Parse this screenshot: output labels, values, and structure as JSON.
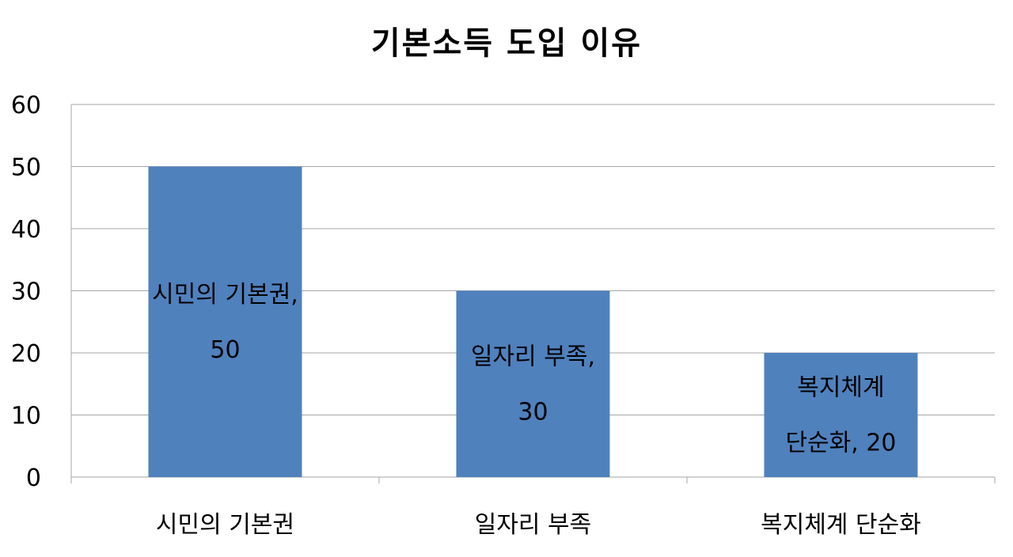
{
  "chart_data": {
    "type": "bar",
    "title": "기본소득 도입 이유",
    "xlabel": "",
    "ylabel": "",
    "categories": [
      "시민의 기본권",
      "일자리 부족",
      "복지체계 단순화"
    ],
    "values": [
      50,
      30,
      20
    ],
    "data_labels": [
      [
        "시민의 기본권,",
        "50"
      ],
      [
        "일자리 부족,",
        "30"
      ],
      [
        "복지체계",
        "단순화, 20"
      ]
    ],
    "ylim": [
      0,
      60
    ],
    "yticks": [
      0,
      10,
      20,
      30,
      40,
      50,
      60
    ],
    "grid": true,
    "legend": "none",
    "colors": {
      "bar": "#4f81bd",
      "grid": "#a6a6a6",
      "axis": "#a6a6a6"
    }
  }
}
